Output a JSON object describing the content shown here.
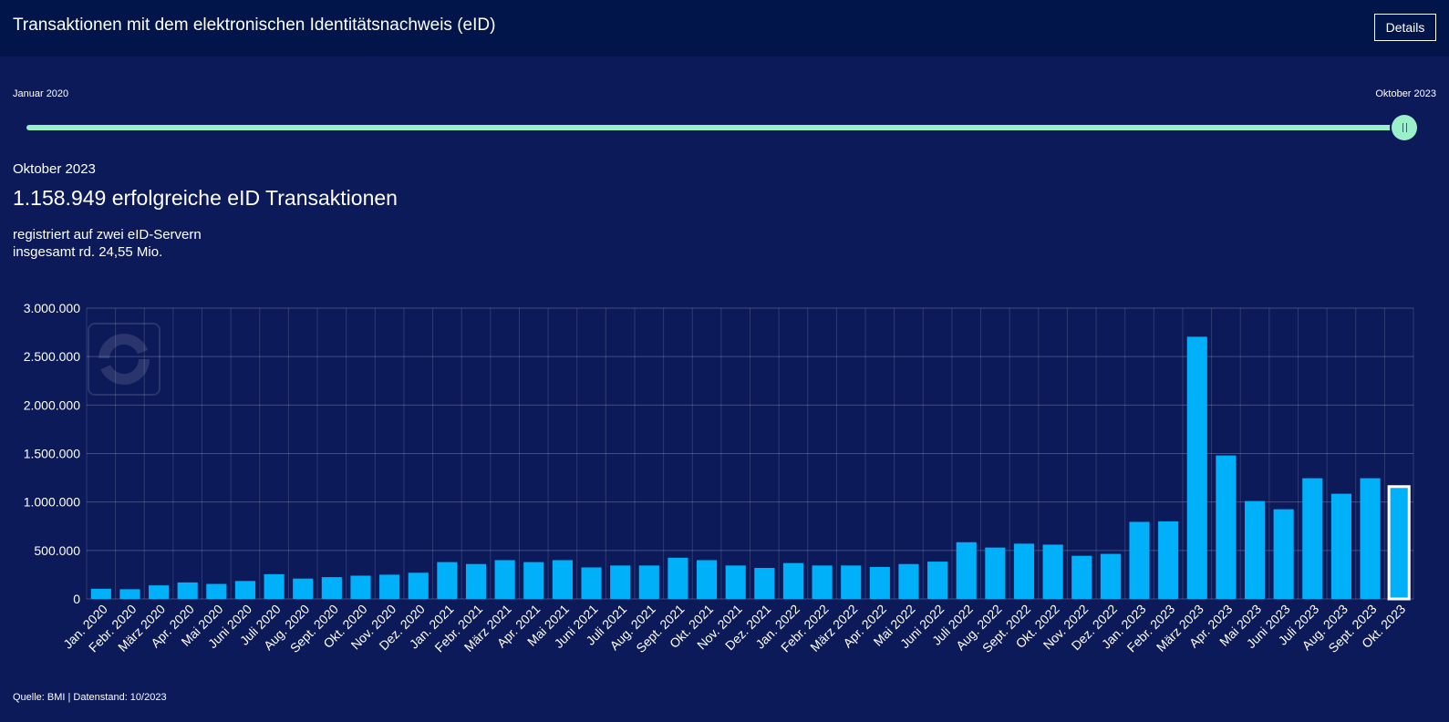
{
  "header": {
    "title": "Transaktionen mit dem elektronischen Identitätsnachweis (eID)",
    "details_label": "Details"
  },
  "range": {
    "start_label": "Januar 2020",
    "end_label": "Oktober 2023",
    "selected_fraction": 1.0
  },
  "selection": {
    "month": "Oktober 2023",
    "headline": "1.158.949 erfolgreiche eID Transaktionen",
    "line1": "registriert auf zwei eID-Servern",
    "line2": "insgesamt rd. 24,55 Mio."
  },
  "source": "Quelle: BMI | Datenstand: 10/2023",
  "colors": {
    "background": "#0d1a5a",
    "header": "#02154a",
    "bar": "#00b0f8",
    "slider": "#9af0c8",
    "selected_outline": "#ffffff"
  },
  "chart_data": {
    "type": "bar",
    "categories": [
      "Jan. 2020",
      "Febr. 2020",
      "März 2020",
      "Apr. 2020",
      "Mai 2020",
      "Juni 2020",
      "Juli 2020",
      "Aug. 2020",
      "Sept. 2020",
      "Okt. 2020",
      "Nov. 2020",
      "Dez. 2020",
      "Jan. 2021",
      "Febr. 2021",
      "März 2021",
      "Apr. 2021",
      "Mai 2021",
      "Juni 2021",
      "Juli 2021",
      "Aug. 2021",
      "Sept. 2021",
      "Okt. 2021",
      "Nov. 2021",
      "Dez. 2021",
      "Jan. 2022",
      "Febr. 2022",
      "März 2022",
      "Apr. 2022",
      "Mai 2022",
      "Juni 2022",
      "Juli 2022",
      "Aug. 2022",
      "Sept. 2022",
      "Okt. 2022",
      "Nov. 2022",
      "Dez. 2022",
      "Jan. 2023",
      "Febr. 2023",
      "März 2023",
      "Apr. 2023",
      "Mai 2023",
      "Juni 2023",
      "Juli 2023",
      "Aug. 2023",
      "Sept. 2023",
      "Okt. 2023"
    ],
    "values": [
      105000,
      100000,
      140000,
      170000,
      155000,
      185000,
      255000,
      210000,
      225000,
      240000,
      250000,
      270000,
      380000,
      360000,
      400000,
      380000,
      400000,
      325000,
      345000,
      345000,
      425000,
      400000,
      345000,
      320000,
      370000,
      345000,
      345000,
      330000,
      360000,
      385000,
      585000,
      530000,
      570000,
      560000,
      445000,
      465000,
      795000,
      800000,
      2705000,
      1480000,
      1010000,
      925000,
      1245000,
      1085000,
      1245000,
      1158949
    ],
    "selected_index": 45,
    "ylim": [
      0,
      3000000
    ],
    "yticks": [
      0,
      500000,
      1000000,
      1500000,
      2000000,
      2500000,
      3000000
    ],
    "ytick_labels": [
      "0",
      "500.000",
      "1.000.000",
      "1.500.000",
      "2.000.000",
      "2.500.000",
      "3.000.000"
    ],
    "grid": true,
    "title": "",
    "xlabel": "",
    "ylabel": ""
  }
}
